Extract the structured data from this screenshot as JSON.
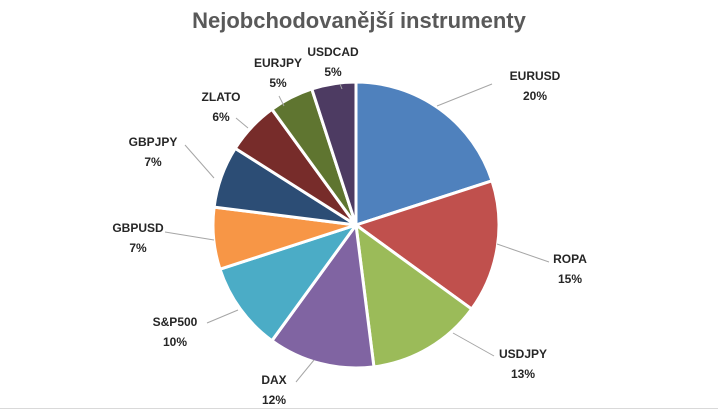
{
  "chart_data": {
    "type": "pie",
    "title": "Nejobchodovanější instrumenty",
    "categories": [
      "EURUSD",
      "ROPA",
      "USDJPY",
      "DAX",
      "S&P500",
      "GBPUSD",
      "GBPJPY",
      "ZLATO",
      "EURJPY",
      "USDCAD"
    ],
    "values": [
      20,
      15,
      13,
      12,
      10,
      7,
      7,
      6,
      5,
      5
    ],
    "value_labels": [
      "20%",
      "15%",
      "13%",
      "12%",
      "10%",
      "7%",
      "7%",
      "6%",
      "5%",
      "5%"
    ],
    "colors": [
      "#4f81bd",
      "#c0504d",
      "#9bbb59",
      "#8064a2",
      "#4bacc6",
      "#f79646",
      "#2c4d75",
      "#772c2a",
      "#5f7530",
      "#4d3b62"
    ],
    "start_angle": "12 o'clock",
    "direction": "clockwise",
    "legend": "none"
  }
}
